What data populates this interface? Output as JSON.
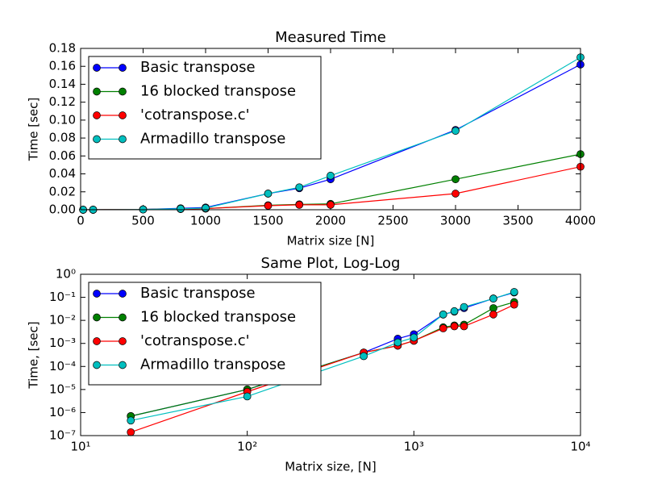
{
  "chart_data": [
    {
      "type": "line",
      "title": "Measured Time",
      "x_label": "Matrix size [N]",
      "y_label": "Time [sec]",
      "x": [
        20,
        100,
        500,
        800,
        1000,
        1500,
        1750,
        2000,
        3000,
        4000
      ],
      "xlim": [
        0,
        4000
      ],
      "xticks": [
        0,
        500,
        1000,
        1500,
        2000,
        2500,
        3000,
        3500,
        4000
      ],
      "ylim": [
        0,
        0.18
      ],
      "yticks": [
        {
          "value": 0,
          "label": "0.00"
        },
        {
          "value": 0.02,
          "label": "0.02"
        },
        {
          "value": 0.04,
          "label": "0.04"
        },
        {
          "value": 0.06,
          "label": "0.06"
        },
        {
          "value": 0.08,
          "label": "0.08"
        },
        {
          "value": 0.1,
          "label": "0.10"
        },
        {
          "value": 0.12,
          "label": "0.12"
        },
        {
          "value": 0.14,
          "label": "0.14"
        },
        {
          "value": 0.16,
          "label": "0.16"
        },
        {
          "value": 0.18,
          "label": "0.18"
        }
      ],
      "legend": "upper left",
      "series": [
        {
          "name": "Basic transpose",
          "color": "#0000ff",
          "values": [
            7e-07,
            1e-05,
            0.0004,
            0.0016,
            0.0025,
            0.018,
            0.024,
            0.034,
            0.089,
            0.162
          ]
        },
        {
          "name": "16 blocked transpose",
          "color": "#008000",
          "values": [
            7e-07,
            1e-05,
            0.0004,
            0.0008,
            0.0013,
            0.005,
            0.006,
            0.0065,
            0.034,
            0.062
          ]
        },
        {
          "name": "'cotranspose.c'",
          "color": "#ff0000",
          "values": [
            1.4e-07,
            8e-06,
            0.0004,
            0.0008,
            0.0013,
            0.0045,
            0.0055,
            0.0055,
            0.018,
            0.048
          ]
        },
        {
          "name": "Armadillo transpose",
          "color": "#00bfbf",
          "values": [
            4.5e-07,
            5e-06,
            0.00028,
            0.0011,
            0.0018,
            0.018,
            0.025,
            0.038,
            0.088,
            0.17
          ]
        }
      ]
    },
    {
      "type": "line",
      "title": "Same Plot, Log-Log",
      "x_label": "Matrix size, [N]",
      "y_label": "Time, [sec]",
      "xscale": "log",
      "yscale": "log",
      "x": [
        20,
        100,
        500,
        800,
        1000,
        1500,
        1750,
        2000,
        3000,
        4000
      ],
      "xlim": [
        10,
        10000
      ],
      "xticks": [
        {
          "value": 10,
          "label": "10¹"
        },
        {
          "value": 100,
          "label": "10²"
        },
        {
          "value": 1000,
          "label": "10³"
        },
        {
          "value": 10000,
          "label": "10⁴"
        }
      ],
      "ylim": [
        1e-07,
        1
      ],
      "yticks": [
        {
          "value": 1e-07,
          "label": "10⁻⁷"
        },
        {
          "value": 1e-06,
          "label": "10⁻⁶"
        },
        {
          "value": 1e-05,
          "label": "10⁻⁵"
        },
        {
          "value": 0.0001,
          "label": "10⁻⁴"
        },
        {
          "value": 0.001,
          "label": "10⁻³"
        },
        {
          "value": 0.01,
          "label": "10⁻²"
        },
        {
          "value": 0.1,
          "label": "10⁻¹"
        },
        {
          "value": 1,
          "label": "10⁰"
        }
      ],
      "legend": "upper left",
      "series": [
        {
          "name": "Basic transpose",
          "color": "#0000ff",
          "values": [
            7e-07,
            1e-05,
            0.0004,
            0.0016,
            0.0025,
            0.018,
            0.024,
            0.034,
            0.089,
            0.162
          ]
        },
        {
          "name": "16 blocked transpose",
          "color": "#008000",
          "values": [
            7e-07,
            1e-05,
            0.0004,
            0.0008,
            0.0013,
            0.005,
            0.006,
            0.0065,
            0.034,
            0.062
          ]
        },
        {
          "name": "'cotranspose.c'",
          "color": "#ff0000",
          "values": [
            1.4e-07,
            8e-06,
            0.0004,
            0.0008,
            0.0013,
            0.0045,
            0.0055,
            0.0055,
            0.018,
            0.048
          ]
        },
        {
          "name": "Armadillo transpose",
          "color": "#00bfbf",
          "values": [
            4.5e-07,
            5e-06,
            0.00028,
            0.0011,
            0.0018,
            0.018,
            0.025,
            0.038,
            0.088,
            0.17
          ]
        }
      ]
    }
  ]
}
